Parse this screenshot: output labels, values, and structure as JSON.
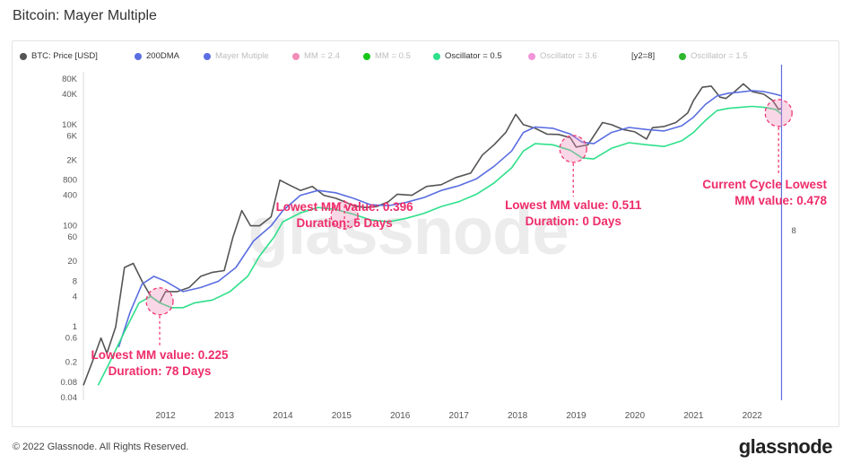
{
  "page": {
    "title": "Bitcoin: Mayer Multiple",
    "footer": "© 2022 Glassnode. All Rights Reserved.",
    "brand": "glassnode",
    "watermark": "glassnode"
  },
  "legend": [
    {
      "label": "BTC: Price [USD]",
      "color": "#555555",
      "active": true
    },
    {
      "label": "200DMA",
      "color": "#5b6ee1",
      "active": true
    },
    {
      "label": "Mayer Mutiple",
      "color": "#5b6ee1",
      "active": false
    },
    {
      "label": "MM = 2.4",
      "color": "#f28cb8",
      "active": false
    },
    {
      "label": "MM = 0.5",
      "color": "#19c719",
      "active": false
    },
    {
      "label": "Oscillator = 0.5",
      "color": "#2ee08a",
      "active": true
    },
    {
      "label": "Oscillator = 3.6",
      "color": "#f294d8",
      "active": false
    },
    {
      "label": "[y2=8]",
      "color": "",
      "active": true
    },
    {
      "label": "Oscillator = 1.5",
      "color": "#2db82d",
      "active": false
    }
  ],
  "chart_data": {
    "type": "line",
    "title": "Bitcoin: Mayer Multiple",
    "y_scale": "log",
    "ylim": [
      0.04,
      80000
    ],
    "y_ticks": [
      {
        "value": 0.04,
        "label": "0.04"
      },
      {
        "value": 0.08,
        "label": "0.08"
      },
      {
        "value": 0.2,
        "label": "0.2"
      },
      {
        "value": 0.6,
        "label": "0.6"
      },
      {
        "value": 1,
        "label": "1"
      },
      {
        "value": 4,
        "label": "4"
      },
      {
        "value": 8,
        "label": "8"
      },
      {
        "value": 20,
        "label": "20"
      },
      {
        "value": 60,
        "label": "60"
      },
      {
        "value": 100,
        "label": "100"
      },
      {
        "value": 400,
        "label": "400"
      },
      {
        "value": 800,
        "label": "800"
      },
      {
        "value": 2000,
        "label": "2K"
      },
      {
        "value": 6000,
        "label": "6K"
      },
      {
        "value": 10000,
        "label": "10K"
      },
      {
        "value": 40000,
        "label": "40K"
      },
      {
        "value": 80000,
        "label": "80K"
      }
    ],
    "xlim": [
      2010.6,
      2022.6
    ],
    "x_ticks": [
      "2012",
      "2013",
      "2014",
      "2015",
      "2016",
      "2017",
      "2018",
      "2019",
      "2020",
      "2021",
      "2022"
    ],
    "y2_label": "8",
    "current_marker_x": 2022.5,
    "series": [
      {
        "name": "BTC: Price [USD]",
        "color": "#555555",
        "x": [
          2010.6,
          2010.75,
          2010.9,
          2011.0,
          2011.15,
          2011.3,
          2011.45,
          2011.6,
          2011.75,
          2011.9,
          2012.0,
          2012.2,
          2012.4,
          2012.6,
          2012.8,
          2013.0,
          2013.15,
          2013.3,
          2013.45,
          2013.6,
          2013.8,
          2013.95,
          2014.1,
          2014.3,
          2014.5,
          2014.7,
          2014.9,
          2015.05,
          2015.2,
          2015.4,
          2015.6,
          2015.8,
          2015.95,
          2016.2,
          2016.45,
          2016.7,
          2016.95,
          2017.2,
          2017.4,
          2017.6,
          2017.8,
          2017.97,
          2018.1,
          2018.3,
          2018.5,
          2018.7,
          2018.9,
          2019.0,
          2019.2,
          2019.45,
          2019.6,
          2019.8,
          2020.0,
          2020.2,
          2020.3,
          2020.5,
          2020.7,
          2020.9,
          2021.0,
          2021.15,
          2021.3,
          2021.45,
          2021.55,
          2021.7,
          2021.85,
          2022.0,
          2022.2,
          2022.35,
          2022.45,
          2022.5
        ],
        "y": [
          0.07,
          0.2,
          0.6,
          0.3,
          1,
          15,
          18,
          8,
          4,
          3,
          5,
          5,
          6,
          10,
          12,
          13,
          60,
          200,
          100,
          100,
          150,
          800,
          650,
          500,
          600,
          400,
          350,
          300,
          250,
          230,
          240,
          300,
          420,
          400,
          600,
          650,
          900,
          1100,
          2500,
          4000,
          7000,
          16000,
          10000,
          8500,
          6500,
          6400,
          5500,
          3600,
          4000,
          11000,
          10000,
          8000,
          7200,
          5200,
          8700,
          9200,
          11000,
          17000,
          30000,
          55000,
          58000,
          35000,
          33000,
          45000,
          64000,
          45000,
          40000,
          30000,
          20000,
          21000
        ]
      },
      {
        "name": "200DMA",
        "color": "#5b6ee1",
        "x": [
          2011.2,
          2011.4,
          2011.6,
          2011.8,
          2012.0,
          2012.3,
          2012.6,
          2012.9,
          2013.2,
          2013.5,
          2013.8,
          2014.0,
          2014.3,
          2014.6,
          2014.9,
          2015.2,
          2015.5,
          2015.8,
          2016.1,
          2016.4,
          2016.7,
          2017.0,
          2017.3,
          2017.6,
          2017.9,
          2018.1,
          2018.3,
          2018.6,
          2018.9,
          2019.1,
          2019.3,
          2019.6,
          2019.9,
          2020.2,
          2020.5,
          2020.8,
          2021.0,
          2021.2,
          2021.4,
          2021.6,
          2021.8,
          2022.0,
          2022.2,
          2022.4,
          2022.5
        ],
        "y": [
          0.4,
          2,
          7,
          10,
          8,
          5,
          6,
          8,
          15,
          50,
          100,
          200,
          400,
          500,
          450,
          350,
          260,
          250,
          290,
          360,
          500,
          620,
          850,
          1500,
          3000,
          7000,
          9000,
          8500,
          6500,
          4500,
          4200,
          7000,
          8800,
          8000,
          7500,
          9500,
          14000,
          25000,
          37000,
          42000,
          44000,
          47000,
          45000,
          40000,
          37000
        ]
      },
      {
        "name": "Oscillator = 0.5",
        "color": "#2ee08a",
        "x": [
          2010.85,
          2011.05,
          2011.3,
          2011.55,
          2011.75,
          2011.9,
          2012.1,
          2012.3,
          2012.5,
          2012.8,
          2013.1,
          2013.4,
          2013.6,
          2013.85,
          2014.0,
          2014.3,
          2014.6,
          2014.9,
          2015.2,
          2015.5,
          2015.8,
          2016.1,
          2016.4,
          2016.7,
          2017.0,
          2017.3,
          2017.6,
          2017.9,
          2018.1,
          2018.3,
          2018.6,
          2018.9,
          2019.1,
          2019.3,
          2019.6,
          2019.9,
          2020.2,
          2020.5,
          2020.8,
          2021.0,
          2021.2,
          2021.4,
          2021.6,
          2021.8,
          2022.0,
          2022.2,
          2022.4,
          2022.5
        ],
        "y": [
          0.07,
          0.2,
          0.8,
          3,
          4,
          3,
          2.4,
          2.4,
          3,
          3.4,
          5,
          10,
          25,
          60,
          120,
          180,
          230,
          210,
          170,
          130,
          120,
          140,
          175,
          240,
          300,
          420,
          700,
          1400,
          3000,
          4200,
          4000,
          3100,
          2200,
          2100,
          3400,
          4400,
          4000,
          3700,
          4800,
          7000,
          12000,
          19000,
          21000,
          22000,
          23000,
          22000,
          20000,
          16000
        ]
      }
    ],
    "annotations": [
      {
        "lines": [
          "Lowest MM value: 0.225",
          "Duration: 78 Days"
        ],
        "x": 2011.9,
        "y": 3.2
      },
      {
        "lines": [
          "Lowest MM value: 0.396",
          "Duration: 5 Days"
        ],
        "x": 2015.05,
        "y": 160
      },
      {
        "lines": [
          "Lowest MM value: 0.511",
          "Duration: 0 Days"
        ],
        "x": 2018.95,
        "y": 3300
      },
      {
        "lines": [
          "Current Cycle Lowest",
          "MM value: 0.478"
        ],
        "x": 2022.45,
        "y": 17000
      }
    ]
  }
}
